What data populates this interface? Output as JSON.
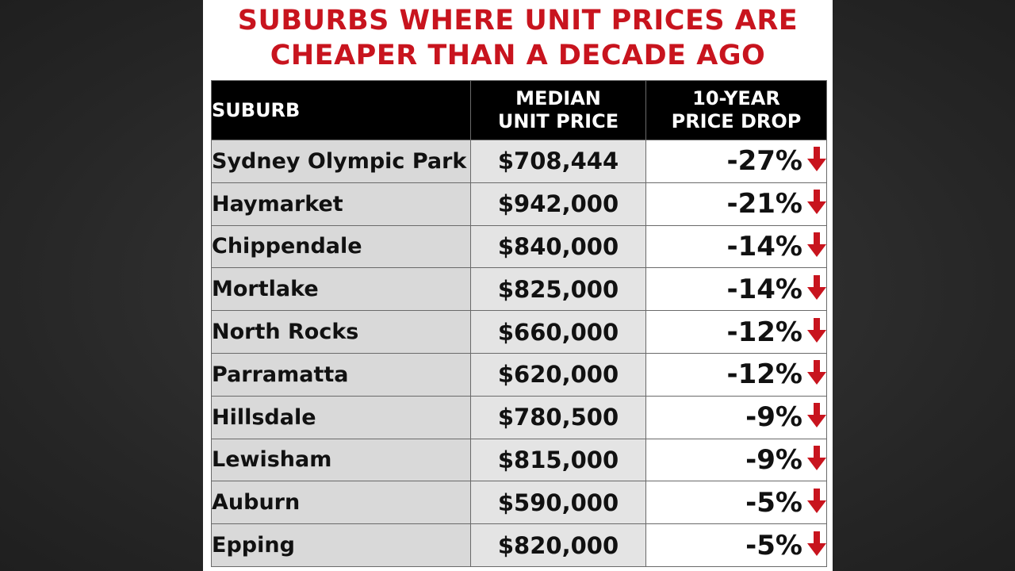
{
  "title_lines": [
    "SUBURBS WHERE UNIT PRICES ARE",
    "CHEAPER THAN A DECADE AGO"
  ],
  "table": {
    "headers": {
      "suburb": "SUBURB",
      "price": [
        "MEDIAN",
        "UNIT PRICE"
      ],
      "drop": [
        "10-YEAR",
        "PRICE DROP"
      ]
    }
  },
  "colors": {
    "accent_red": "#c8141e",
    "header_bg": "#000000"
  },
  "icons": {
    "drop_indicator": "down-arrow-icon"
  },
  "chart_data": {
    "type": "table",
    "title": "SUBURBS WHERE UNIT PRICES ARE CHEAPER THAN A DECADE AGO",
    "columns": [
      "SUBURB",
      "MEDIAN UNIT PRICE",
      "10-YEAR PRICE DROP"
    ],
    "rows": [
      {
        "suburb": "Sydney Olympic Park",
        "price": "$708,444",
        "drop": "-27%"
      },
      {
        "suburb": "Haymarket",
        "price": "$942,000",
        "drop": "-21%"
      },
      {
        "suburb": "Chippendale",
        "price": "$840,000",
        "drop": "-14%"
      },
      {
        "suburb": "Mortlake",
        "price": "$825,000",
        "drop": "-14%"
      },
      {
        "suburb": "North Rocks",
        "price": "$660,000",
        "drop": "-12%"
      },
      {
        "suburb": "Parramatta",
        "price": "$620,000",
        "drop": "-12%"
      },
      {
        "suburb": "Hillsdale",
        "price": "$780,500",
        "drop": "-9%"
      },
      {
        "suburb": "Lewisham",
        "price": "$815,000",
        "drop": "-9%"
      },
      {
        "suburb": "Auburn",
        "price": "$590,000",
        "drop": "-5%"
      },
      {
        "suburb": "Epping",
        "price": "$820,000",
        "drop": "-5%"
      }
    ]
  }
}
